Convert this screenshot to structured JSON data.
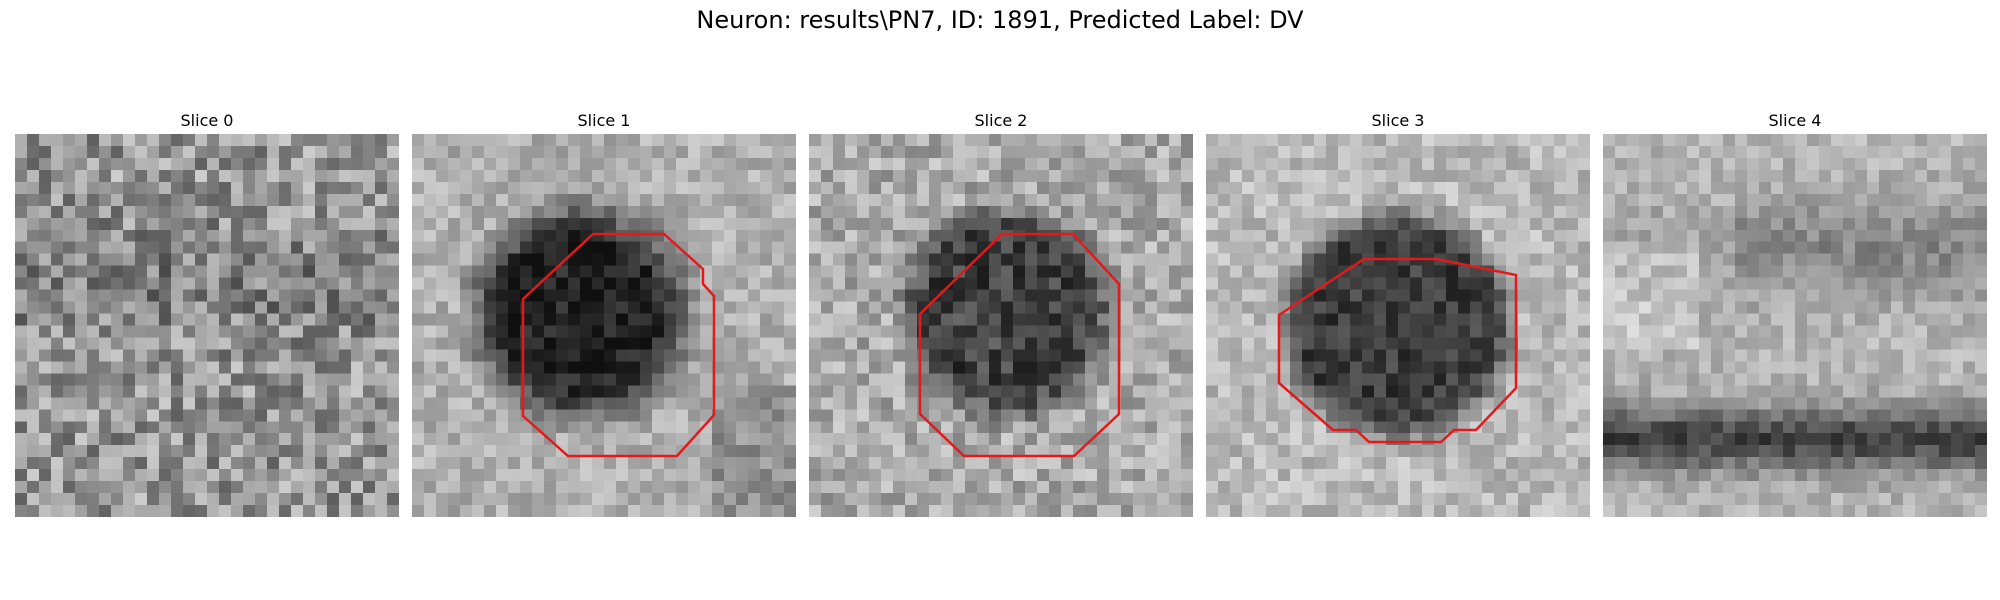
{
  "figure": {
    "title": "Neuron: results\\PN7, ID: 1891, Predicted Label: DV"
  },
  "colors": {
    "contour": "#e31a1c"
  },
  "panels": [
    {
      "title": "Slice 0",
      "has_contour": false
    },
    {
      "title": "Slice 1",
      "has_contour": true
    },
    {
      "title": "Slice 2",
      "has_contour": true
    },
    {
      "title": "Slice 3",
      "has_contour": true
    },
    {
      "title": "Slice 4",
      "has_contour": false
    }
  ]
}
